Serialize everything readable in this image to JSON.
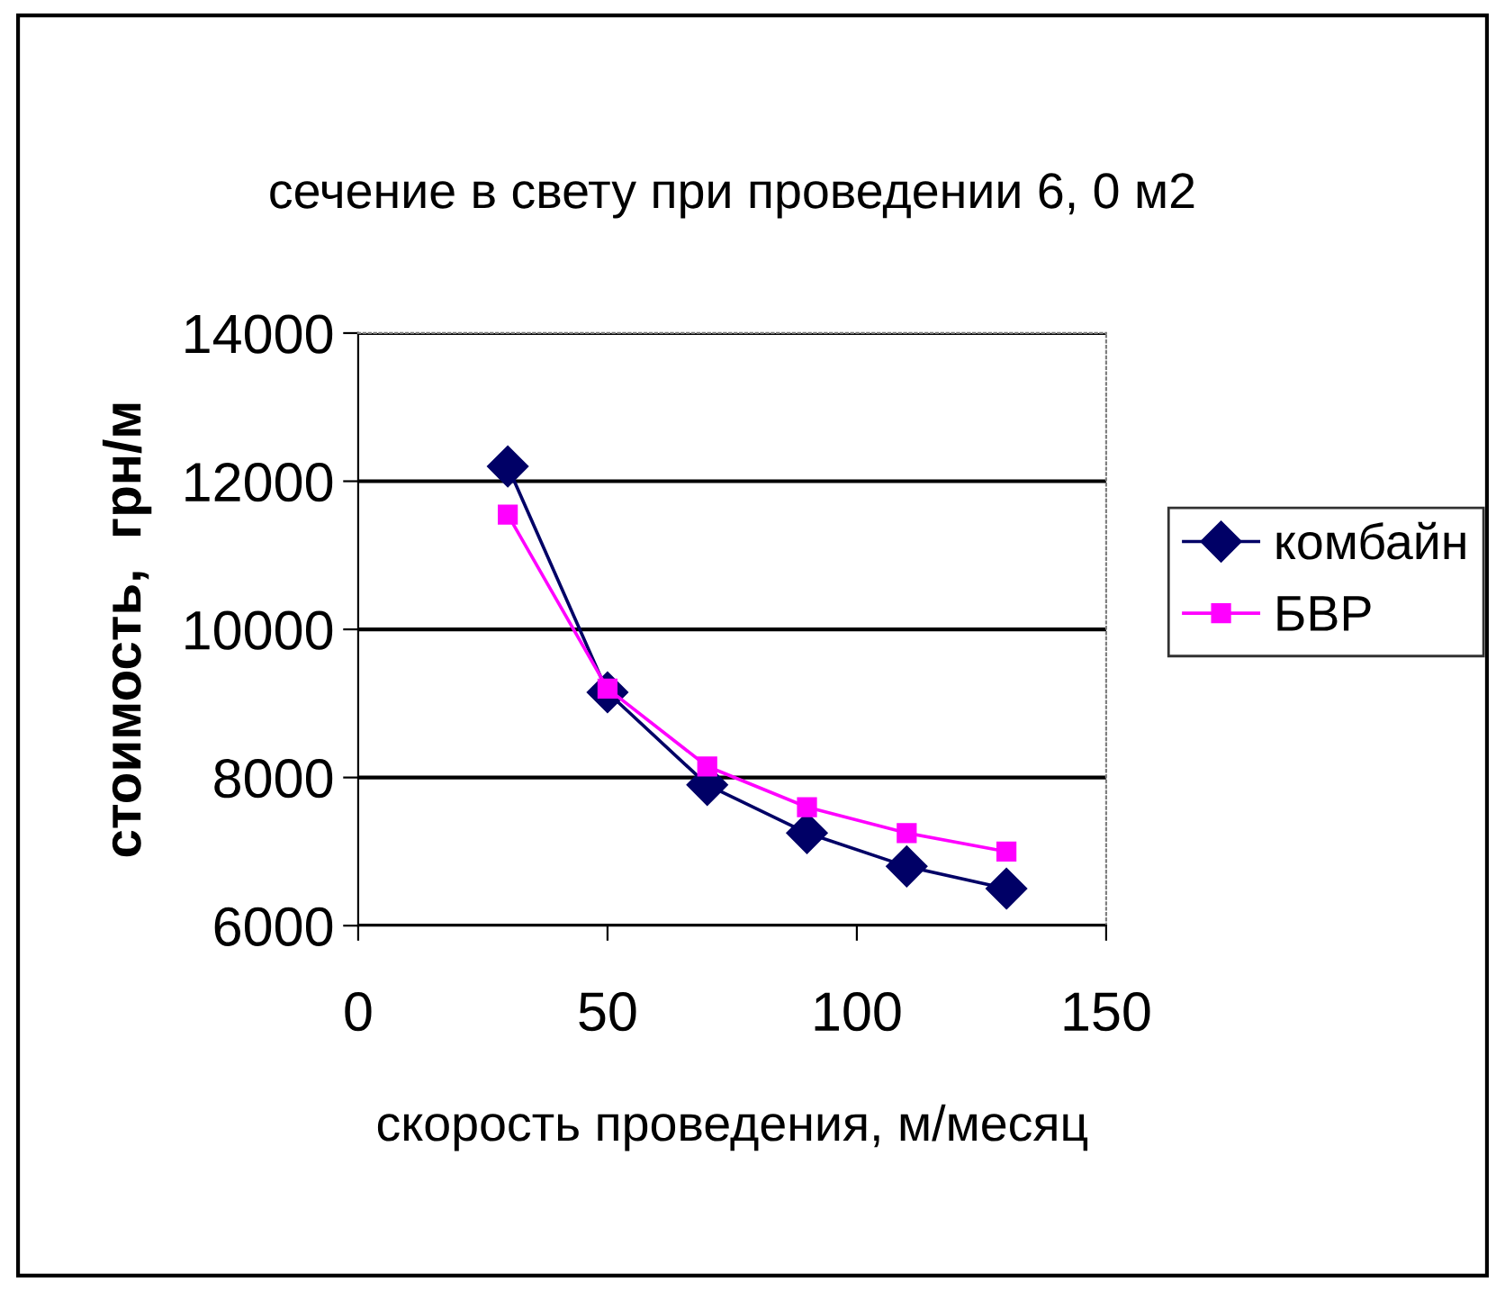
{
  "chart_data": {
    "type": "line",
    "title": "сечение в свету при проведении 6, 0 м2",
    "xlabel": "скорость проведения, м/месяц",
    "ylabel": "стоимость,  грн/м",
    "x": [
      30,
      50,
      70,
      90,
      110,
      130
    ],
    "series": [
      {
        "name": "комбайн",
        "color": "#000066",
        "marker": "diamond",
        "values": [
          12200,
          9150,
          7900,
          7250,
          6800,
          6500
        ]
      },
      {
        "name": "БВР",
        "color": "#ff00ff",
        "marker": "square",
        "values": [
          11550,
          9200,
          8150,
          7600,
          7250,
          7000
        ]
      }
    ],
    "xlim": [
      0,
      150
    ],
    "xticks": [
      0,
      50,
      100,
      150
    ],
    "ylim": [
      6000,
      14000
    ],
    "yticks": [
      6000,
      8000,
      10000,
      12000,
      14000
    ],
    "grid": "y",
    "legend": "right"
  }
}
